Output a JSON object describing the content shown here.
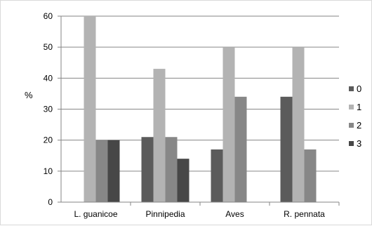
{
  "chart_data": {
    "type": "bar",
    "title": "",
    "xlabel": "",
    "ylabel": "%",
    "ylim": [
      0,
      60
    ],
    "yticks": [
      0,
      10,
      20,
      30,
      40,
      50,
      60
    ],
    "grid": true,
    "legend_position": "right",
    "categories": [
      "L. guanicoe",
      "Pinnipedia",
      "Aves",
      "R. pennata"
    ],
    "series": [
      {
        "name": "0",
        "color": "#5b5b5b",
        "values": [
          0,
          21,
          17,
          34
        ]
      },
      {
        "name": "1",
        "color": "#b3b3b3",
        "values": [
          60,
          43,
          50,
          50
        ]
      },
      {
        "name": "2",
        "color": "#878787",
        "values": [
          20,
          21,
          34,
          17
        ]
      },
      {
        "name": "3",
        "color": "#474747",
        "values": [
          20,
          14,
          0,
          0
        ]
      }
    ]
  }
}
